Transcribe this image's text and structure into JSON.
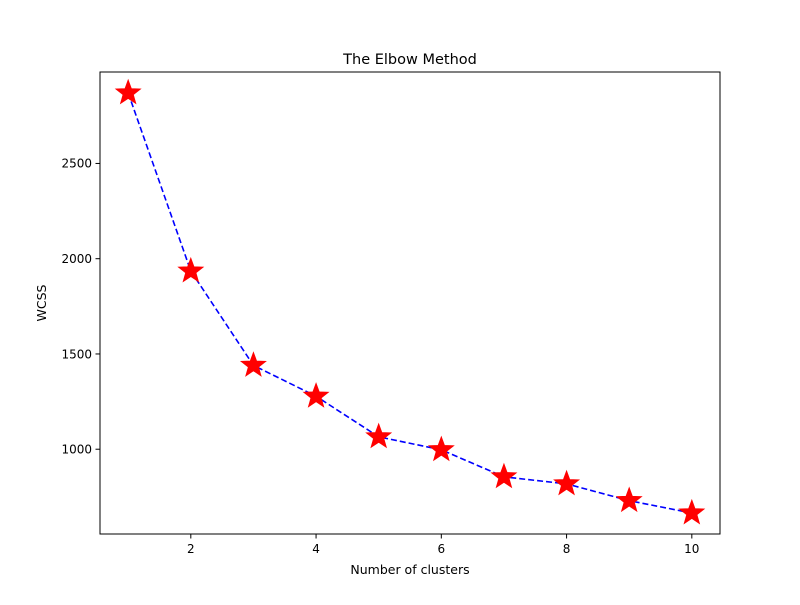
{
  "chart_data": {
    "type": "line",
    "title": "The Elbow Method",
    "xlabel": "Number of clusters",
    "ylabel": "WCSS",
    "x": [
      1,
      2,
      3,
      4,
      5,
      6,
      7,
      8,
      9,
      10
    ],
    "y": [
      2870,
      1935,
      1440,
      1278,
      1065,
      997,
      855,
      818,
      730,
      665
    ],
    "xlim": [
      0.55,
      10.45
    ],
    "ylim": [
      555,
      2980
    ],
    "xticks": [
      2,
      4,
      6,
      8,
      10
    ],
    "yticks": [
      1000,
      1500,
      2000,
      2500
    ],
    "grid": false,
    "line_color": "#0000ff",
    "line_style": "dashed",
    "marker": "star",
    "marker_color": "#ff0000"
  }
}
